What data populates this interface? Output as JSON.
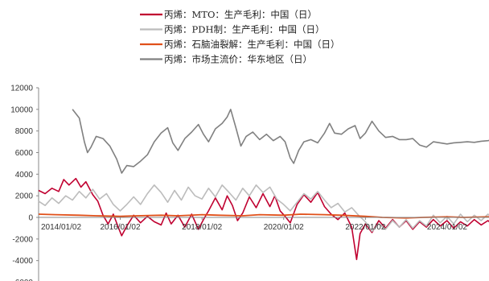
{
  "chart_data": {
    "type": "line",
    "title": "",
    "xlabel": "",
    "ylabel": "",
    "ylim": [
      -6000,
      12000
    ],
    "xlim": [
      "2014-01-02",
      "2025-07-31"
    ],
    "yticks": [
      12000,
      10000,
      8000,
      6000,
      4000,
      2000,
      0,
      -2000,
      -4000,
      -6000
    ],
    "xticks": [
      "2014/01/02",
      "2016/01/02",
      "2018/01/02",
      "2020/01/02",
      "2022/01/02",
      "2024/01/02"
    ],
    "grid": false,
    "legend_position": "top-center",
    "series": [
      {
        "name": "丙烯：MTO：生产毛利：中国（日）",
        "color": "#c00030",
        "width": 1.6,
        "points": [
          [
            "2014-01-02",
            2500
          ],
          [
            "2014-03-01",
            2200
          ],
          [
            "2014-05-01",
            2700
          ],
          [
            "2014-07-01",
            2400
          ],
          [
            "2014-08-15",
            3500
          ],
          [
            "2014-10-01",
            3000
          ],
          [
            "2014-12-01",
            3600
          ],
          [
            "2015-01-15",
            2800
          ],
          [
            "2015-03-01",
            3300
          ],
          [
            "2015-05-01",
            2100
          ],
          [
            "2015-06-15",
            1500
          ],
          [
            "2015-08-01",
            200
          ],
          [
            "2015-09-15",
            -600
          ],
          [
            "2015-11-01",
            300
          ],
          [
            "2015-12-15",
            -900
          ],
          [
            "2016-01-15",
            -1700
          ],
          [
            "2016-03-01",
            -800
          ],
          [
            "2016-05-01",
            200
          ],
          [
            "2016-07-01",
            -500
          ],
          [
            "2016-09-01",
            100
          ],
          [
            "2016-11-01",
            -400
          ],
          [
            "2017-01-01",
            -700
          ],
          [
            "2017-02-15",
            400
          ],
          [
            "2017-04-01",
            -600
          ],
          [
            "2017-06-01",
            200
          ],
          [
            "2017-08-01",
            -900
          ],
          [
            "2017-10-01",
            300
          ],
          [
            "2017-12-01",
            -1100
          ],
          [
            "2018-01-15",
            -200
          ],
          [
            "2018-03-01",
            600
          ],
          [
            "2018-05-01",
            1800
          ],
          [
            "2018-07-01",
            700
          ],
          [
            "2018-08-15",
            2000
          ],
          [
            "2018-10-01",
            1100
          ],
          [
            "2018-11-15",
            -300
          ],
          [
            "2019-01-01",
            400
          ],
          [
            "2019-03-01",
            1900
          ],
          [
            "2019-05-01",
            900
          ],
          [
            "2019-07-01",
            2200
          ],
          [
            "2019-09-01",
            1000
          ],
          [
            "2019-10-15",
            2000
          ],
          [
            "2019-12-01",
            600
          ],
          [
            "2020-01-15",
            100
          ],
          [
            "2020-03-01",
            -500
          ],
          [
            "2020-05-01",
            1200
          ],
          [
            "2020-07-01",
            2100
          ],
          [
            "2020-09-01",
            1400
          ],
          [
            "2020-11-01",
            2300
          ],
          [
            "2021-01-01",
            1000
          ],
          [
            "2021-03-01",
            300
          ],
          [
            "2021-05-01",
            -200
          ],
          [
            "2021-07-01",
            400
          ],
          [
            "2021-09-01",
            -900
          ],
          [
            "2021-10-15",
            -3900
          ],
          [
            "2021-11-15",
            -1500
          ],
          [
            "2022-01-01",
            -600
          ],
          [
            "2022-03-01",
            -1400
          ],
          [
            "2022-05-01",
            -300
          ],
          [
            "2022-07-01",
            -1000
          ],
          [
            "2022-09-01",
            -200
          ],
          [
            "2022-11-01",
            -900
          ],
          [
            "2023-01-01",
            -300
          ],
          [
            "2023-03-01",
            -1100
          ],
          [
            "2023-05-01",
            -400
          ],
          [
            "2023-07-01",
            -900
          ],
          [
            "2023-09-01",
            -200
          ],
          [
            "2023-11-01",
            -800
          ],
          [
            "2024-01-01",
            -300
          ],
          [
            "2024-03-01",
            -1000
          ],
          [
            "2024-05-01",
            -400
          ],
          [
            "2024-07-01",
            -800
          ],
          [
            "2024-09-01",
            -200
          ],
          [
            "2024-11-01",
            -700
          ],
          [
            "2025-01-01",
            -300
          ],
          [
            "2025-03-01",
            -800
          ],
          [
            "2025-05-01",
            -200
          ],
          [
            "2025-07-01",
            -500
          ]
        ]
      },
      {
        "name": "丙烯：PDH制：生产毛利：中国（日）",
        "color": "#bcbcbc",
        "width": 1.6,
        "points": [
          [
            "2014-01-02",
            1500
          ],
          [
            "2014-03-01",
            1100
          ],
          [
            "2014-05-01",
            1800
          ],
          [
            "2014-07-01",
            1300
          ],
          [
            "2014-09-01",
            2000
          ],
          [
            "2014-11-01",
            1600
          ],
          [
            "2015-01-01",
            2400
          ],
          [
            "2015-03-01",
            1800
          ],
          [
            "2015-05-01",
            2600
          ],
          [
            "2015-07-01",
            1700
          ],
          [
            "2015-09-01",
            2200
          ],
          [
            "2015-11-01",
            1200
          ],
          [
            "2016-01-01",
            600
          ],
          [
            "2016-03-01",
            1200
          ],
          [
            "2016-05-01",
            1900
          ],
          [
            "2016-07-01",
            1200
          ],
          [
            "2016-09-01",
            2200
          ],
          [
            "2016-11-01",
            3000
          ],
          [
            "2017-01-01",
            2300
          ],
          [
            "2017-03-01",
            1400
          ],
          [
            "2017-05-01",
            2500
          ],
          [
            "2017-07-01",
            1600
          ],
          [
            "2017-09-01",
            2800
          ],
          [
            "2017-11-01",
            2000
          ],
          [
            "2018-01-01",
            1700
          ],
          [
            "2018-03-01",
            2700
          ],
          [
            "2018-05-01",
            1900
          ],
          [
            "2018-07-01",
            3000
          ],
          [
            "2018-09-01",
            2300
          ],
          [
            "2018-11-01",
            1600
          ],
          [
            "2019-01-01",
            2700
          ],
          [
            "2019-03-01",
            2000
          ],
          [
            "2019-05-01",
            3000
          ],
          [
            "2019-07-01",
            2300
          ],
          [
            "2019-09-01",
            2800
          ],
          [
            "2019-11-01",
            1700
          ],
          [
            "2020-01-01",
            1200
          ],
          [
            "2020-03-01",
            600
          ],
          [
            "2020-05-01",
            1400
          ],
          [
            "2020-07-01",
            2200
          ],
          [
            "2020-09-01",
            1700
          ],
          [
            "2020-11-01",
            2400
          ],
          [
            "2021-01-01",
            1600
          ],
          [
            "2021-03-01",
            900
          ],
          [
            "2021-05-01",
            1300
          ],
          [
            "2021-07-01",
            500
          ],
          [
            "2021-09-01",
            900
          ],
          [
            "2021-11-01",
            200
          ],
          [
            "2022-01-01",
            -400
          ],
          [
            "2022-03-01",
            -1300
          ],
          [
            "2022-05-01",
            -600
          ],
          [
            "2022-07-01",
            -1100
          ],
          [
            "2022-09-01",
            -300
          ],
          [
            "2022-11-01",
            -900
          ],
          [
            "2023-01-01",
            -200
          ],
          [
            "2023-03-01",
            -1000
          ],
          [
            "2023-05-01",
            -300
          ],
          [
            "2023-07-01",
            -800
          ],
          [
            "2023-09-01",
            200
          ],
          [
            "2023-11-01",
            -500
          ],
          [
            "2024-01-01",
            100
          ],
          [
            "2024-03-01",
            -600
          ],
          [
            "2024-05-01",
            300
          ],
          [
            "2024-07-01",
            -400
          ],
          [
            "2024-09-01",
            200
          ],
          [
            "2024-11-01",
            -300
          ],
          [
            "2025-01-01",
            300
          ],
          [
            "2025-03-01",
            -200
          ],
          [
            "2025-05-01",
            100
          ],
          [
            "2025-07-01",
            -100
          ]
        ]
      },
      {
        "name": "丙烯：石脑油裂解：生产毛利：中国（日）",
        "color": "#e0501a",
        "width": 1.8,
        "points": [
          [
            "2014-01-02",
            300
          ],
          [
            "2014-06-01",
            250
          ],
          [
            "2015-01-01",
            200
          ],
          [
            "2015-06-01",
            150
          ],
          [
            "2016-01-01",
            100
          ],
          [
            "2016-06-01",
            150
          ],
          [
            "2017-01-01",
            200
          ],
          [
            "2017-06-01",
            150
          ],
          [
            "2018-01-01",
            250
          ],
          [
            "2018-06-01",
            200
          ],
          [
            "2019-01-01",
            150
          ],
          [
            "2019-06-01",
            250
          ],
          [
            "2020-01-01",
            200
          ],
          [
            "2020-06-01",
            300
          ],
          [
            "2021-01-01",
            250
          ],
          [
            "2021-06-01",
            200
          ],
          [
            "2022-01-01",
            100
          ],
          [
            "2022-06-01",
            0
          ],
          [
            "2023-01-01",
            -50
          ],
          [
            "2023-06-01",
            0
          ],
          [
            "2024-01-01",
            50
          ],
          [
            "2024-06-01",
            0
          ],
          [
            "2025-01-01",
            50
          ],
          [
            "2025-07-01",
            0
          ]
        ]
      },
      {
        "name": "丙烯：市场主流价：华东地区（日）",
        "color": "#808080",
        "width": 1.6,
        "points": [
          [
            "2014-11-01",
            10000
          ],
          [
            "2015-01-01",
            9200
          ],
          [
            "2015-02-15",
            7000
          ],
          [
            "2015-03-15",
            6000
          ],
          [
            "2015-04-15",
            6500
          ],
          [
            "2015-06-01",
            7500
          ],
          [
            "2015-08-01",
            7300
          ],
          [
            "2015-10-01",
            6600
          ],
          [
            "2015-12-01",
            5400
          ],
          [
            "2016-01-15",
            4100
          ],
          [
            "2016-03-01",
            4800
          ],
          [
            "2016-05-01",
            4700
          ],
          [
            "2016-07-01",
            5200
          ],
          [
            "2016-09-01",
            5800
          ],
          [
            "2016-11-01",
            7000
          ],
          [
            "2017-01-01",
            7800
          ],
          [
            "2017-03-01",
            8300
          ],
          [
            "2017-04-15",
            6900
          ],
          [
            "2017-06-01",
            6200
          ],
          [
            "2017-08-01",
            7300
          ],
          [
            "2017-10-01",
            7900
          ],
          [
            "2017-12-01",
            8600
          ],
          [
            "2018-01-15",
            7700
          ],
          [
            "2018-03-01",
            7000
          ],
          [
            "2018-05-01",
            8200
          ],
          [
            "2018-07-01",
            8700
          ],
          [
            "2018-08-15",
            9300
          ],
          [
            "2018-09-15",
            10000
          ],
          [
            "2018-11-01",
            8300
          ],
          [
            "2018-12-15",
            6600
          ],
          [
            "2019-02-01",
            7500
          ],
          [
            "2019-04-01",
            7900
          ],
          [
            "2019-06-01",
            7200
          ],
          [
            "2019-08-01",
            7700
          ],
          [
            "2019-10-01",
            7100
          ],
          [
            "2019-12-01",
            7500
          ],
          [
            "2020-01-15",
            7000
          ],
          [
            "2020-03-01",
            5500
          ],
          [
            "2020-04-01",
            5000
          ],
          [
            "2020-05-15",
            6200
          ],
          [
            "2020-07-01",
            7000
          ],
          [
            "2020-09-01",
            7200
          ],
          [
            "2020-11-01",
            6900
          ],
          [
            "2021-01-01",
            7800
          ],
          [
            "2021-02-15",
            8700
          ],
          [
            "2021-04-01",
            7800
          ],
          [
            "2021-06-01",
            7700
          ],
          [
            "2021-08-01",
            8200
          ],
          [
            "2021-10-01",
            8500
          ],
          [
            "2021-11-15",
            7300
          ],
          [
            "2022-01-01",
            7800
          ],
          [
            "2022-03-01",
            8900
          ],
          [
            "2022-05-01",
            8000
          ],
          [
            "2022-07-01",
            7400
          ],
          [
            "2022-09-01",
            7500
          ],
          [
            "2022-11-01",
            7200
          ],
          [
            "2023-01-01",
            7200
          ],
          [
            "2023-03-01",
            7300
          ],
          [
            "2023-05-01",
            6700
          ],
          [
            "2023-07-01",
            6500
          ],
          [
            "2023-09-01",
            7000
          ],
          [
            "2023-11-01",
            6900
          ],
          [
            "2024-01-01",
            6800
          ],
          [
            "2024-03-01",
            6900
          ],
          [
            "2024-05-01",
            6950
          ],
          [
            "2024-07-01",
            7000
          ],
          [
            "2024-09-01",
            6950
          ],
          [
            "2024-11-01",
            7050
          ],
          [
            "2025-01-01",
            7100
          ],
          [
            "2025-03-01",
            7200
          ],
          [
            "2025-05-01",
            7000
          ],
          [
            "2025-07-01",
            7100
          ]
        ]
      }
    ]
  }
}
